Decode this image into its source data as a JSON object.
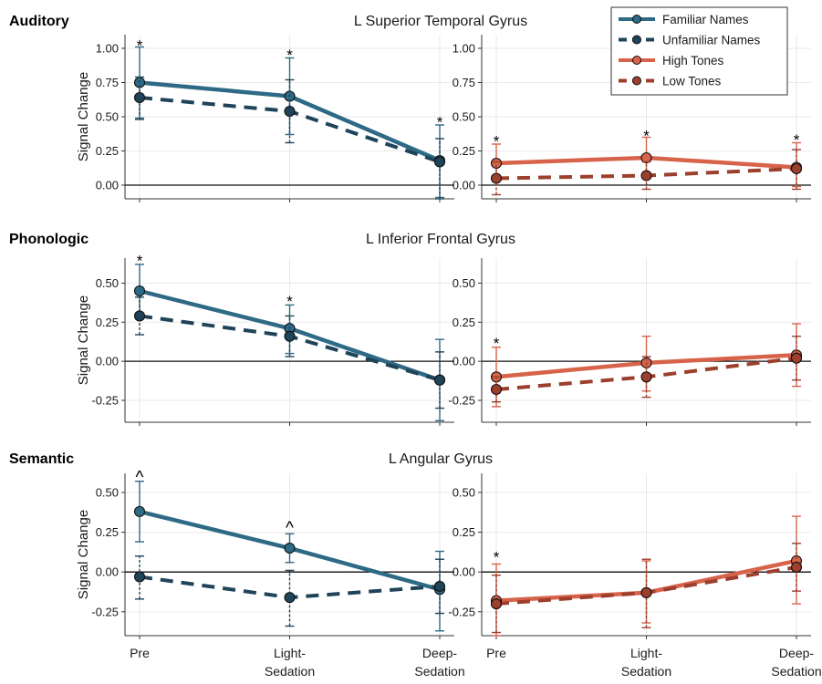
{
  "colors": {
    "familiar": "#2e6a86",
    "unfamiliar": "#1f4459",
    "high": "#d7634a",
    "low": "#9c3f2d"
  },
  "legend": [
    {
      "key": "familiar",
      "label": "Familiar Names",
      "dashed": false
    },
    {
      "key": "unfamiliar",
      "label": "Unfamiliar Names",
      "dashed": true
    },
    {
      "key": "high",
      "label": "High Tones",
      "dashed": false
    },
    {
      "key": "low",
      "label": "Low Tones",
      "dashed": true
    }
  ],
  "x_categories": [
    {
      "lines": [
        "Pre"
      ]
    },
    {
      "lines": [
        "Light-",
        "Sedation"
      ]
    },
    {
      "lines": [
        "Deep-",
        "Sedation"
      ]
    }
  ],
  "chart_data": [
    {
      "type": "line",
      "row": "Auditory",
      "title": "L Superior Temporal Gyrus",
      "ylabel": "Signal Change",
      "ylim": [
        -0.1,
        1.1
      ],
      "yticks": [
        0.0,
        0.25,
        0.5,
        0.75,
        1.0
      ],
      "ytick_labels": [
        "0.00",
        "0.25",
        "0.50",
        "0.75",
        "1.00"
      ],
      "categories": [
        "Pre",
        "Light-Sedation",
        "Deep-Sedation"
      ],
      "grid": true,
      "panels": [
        {
          "side": "left",
          "series": [
            {
              "name": "Familiar Names",
              "key": "familiar",
              "dashed": false,
              "values": [
                0.75,
                0.65,
                0.18
              ],
              "err_low": [
                0.49,
                0.37,
                -0.09
              ],
              "err_high": [
                1.01,
                0.93,
                0.44
              ]
            },
            {
              "name": "Unfamiliar Names",
              "key": "unfamiliar",
              "dashed": true,
              "values": [
                0.64,
                0.54,
                0.17
              ],
              "err_low": [
                0.48,
                0.31,
                -0.1
              ],
              "err_high": [
                0.79,
                0.77,
                0.34
              ]
            }
          ],
          "annotations": [
            {
              "x": 0,
              "y": 1.05,
              "text": "*"
            },
            {
              "x": 1,
              "y": 0.98,
              "text": "*"
            },
            {
              "x": 2,
              "y": 0.49,
              "text": "*"
            }
          ]
        },
        {
          "side": "right",
          "series": [
            {
              "name": "High Tones",
              "key": "high",
              "dashed": false,
              "values": [
                0.16,
                0.2,
                0.13
              ],
              "err_low": [
                0.03,
                0.05,
                -0.01
              ],
              "err_high": [
                0.3,
                0.35,
                0.31
              ]
            },
            {
              "name": "Low Tones",
              "key": "low",
              "dashed": true,
              "values": [
                0.05,
                0.07,
                0.12
              ],
              "err_low": [
                -0.07,
                -0.03,
                -0.03
              ],
              "err_high": [
                0.17,
                0.17,
                0.26
              ]
            }
          ],
          "annotations": [
            {
              "x": 0,
              "y": 0.35,
              "text": "*"
            },
            {
              "x": 1,
              "y": 0.39,
              "text": "*"
            },
            {
              "x": 2,
              "y": 0.36,
              "text": "*"
            }
          ]
        }
      ]
    },
    {
      "type": "line",
      "row": "Phonologic",
      "title": "L Inferior Frontal Gyrus",
      "ylabel": "Signal Change",
      "ylim": [
        -0.39,
        0.66
      ],
      "yticks": [
        -0.25,
        0.0,
        0.25,
        0.5
      ],
      "ytick_labels": [
        "-0.25",
        "0.00",
        "0.25",
        "0.50"
      ],
      "categories": [
        "Pre",
        "Light-Sedation",
        "Deep-Sedation"
      ],
      "grid": true,
      "panels": [
        {
          "side": "left",
          "series": [
            {
              "name": "Familiar Names",
              "key": "familiar",
              "dashed": false,
              "values": [
                0.45,
                0.21,
                -0.12
              ],
              "err_low": [
                0.27,
                0.05,
                -0.38
              ],
              "err_high": [
                0.62,
                0.36,
                0.14
              ]
            },
            {
              "name": "Unfamiliar Names",
              "key": "unfamiliar",
              "dashed": true,
              "values": [
                0.29,
                0.16,
                -0.12
              ],
              "err_low": [
                0.17,
                0.03,
                -0.3
              ],
              "err_high": [
                0.41,
                0.29,
                0.06
              ]
            }
          ],
          "annotations": [
            {
              "x": 0,
              "y": 0.67,
              "text": "*"
            },
            {
              "x": 1,
              "y": 0.41,
              "text": "*"
            }
          ]
        },
        {
          "side": "right",
          "series": [
            {
              "name": "High Tones",
              "key": "high",
              "dashed": false,
              "values": [
                -0.1,
                -0.01,
                0.04
              ],
              "err_low": [
                -0.29,
                -0.19,
                -0.16
              ],
              "err_high": [
                0.09,
                0.16,
                0.24
              ]
            },
            {
              "name": "Low Tones",
              "key": "low",
              "dashed": true,
              "values": [
                -0.18,
                -0.1,
                0.02
              ],
              "err_low": [
                -0.26,
                -0.23,
                -0.12
              ],
              "err_high": [
                -0.1,
                0.03,
                0.16
              ]
            }
          ],
          "annotations": [
            {
              "x": 0,
              "y": 0.14,
              "text": "*"
            }
          ]
        }
      ]
    },
    {
      "type": "line",
      "row": "Semantic",
      "title": "L Angular Gyrus",
      "ylabel": "Signal Change",
      "ylim": [
        -0.4,
        0.62
      ],
      "yticks": [
        -0.25,
        0.0,
        0.25,
        0.5
      ],
      "ytick_labels": [
        "-0.25",
        "0.00",
        "0.25",
        "0.50"
      ],
      "categories": [
        "Pre",
        "Light-Sedation",
        "Deep-Sedation"
      ],
      "grid": true,
      "panels": [
        {
          "side": "left",
          "series": [
            {
              "name": "Familiar Names",
              "key": "familiar",
              "dashed": false,
              "values": [
                0.38,
                0.15,
                -0.11
              ],
              "err_low": [
                0.19,
                0.06,
                -0.37
              ],
              "err_high": [
                0.57,
                0.24,
                0.13
              ]
            },
            {
              "name": "Unfamiliar Names",
              "key": "unfamiliar",
              "dashed": true,
              "values": [
                -0.03,
                -0.16,
                -0.09
              ],
              "err_low": [
                -0.17,
                -0.34,
                -0.26
              ],
              "err_high": [
                0.1,
                0.01,
                0.08
              ]
            }
          ],
          "annotations": [
            {
              "x": 0,
              "y": 0.63,
              "text": "^"
            },
            {
              "x": 1,
              "y": 0.31,
              "text": "^"
            }
          ]
        },
        {
          "side": "right",
          "series": [
            {
              "name": "High Tones",
              "key": "high",
              "dashed": false,
              "values": [
                -0.18,
                -0.13,
                0.07
              ],
              "err_low": [
                -0.4,
                -0.32,
                -0.2
              ],
              "err_high": [
                0.05,
                0.07,
                0.35
              ]
            },
            {
              "name": "Low Tones",
              "key": "low",
              "dashed": true,
              "values": [
                -0.2,
                -0.13,
                0.03
              ],
              "err_low": [
                -0.38,
                -0.35,
                -0.12
              ],
              "err_high": [
                -0.02,
                0.08,
                0.18
              ]
            }
          ],
          "annotations": [
            {
              "x": 0,
              "y": 0.12,
              "text": "*"
            }
          ]
        }
      ]
    }
  ]
}
